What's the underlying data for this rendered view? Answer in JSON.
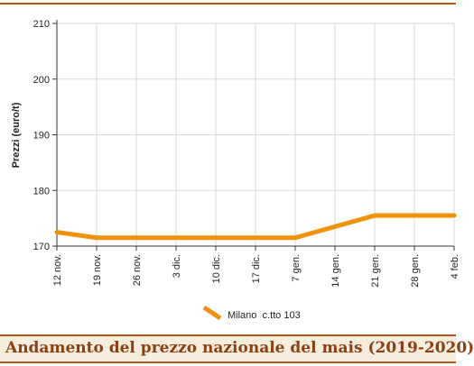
{
  "caption": "Andamento del prezzo nazionale del mais (2019-2020)",
  "chart_data": {
    "type": "line",
    "title": "",
    "xlabel": "",
    "ylabel": "Prezzi (euro/t)",
    "categories": [
      "12 nov.",
      "19 nov.",
      "26 nov.",
      "3 dic.",
      "10 dic.",
      "17 dic.",
      "7 gen.",
      "14 gen.",
      "21 gen.",
      "28 gen.",
      "4 feb."
    ],
    "ylim": [
      170,
      210
    ],
    "yticks": [
      170,
      180,
      190,
      200,
      210
    ],
    "grid": true,
    "legend_position": "bottom",
    "series": [
      {
        "name": "Milano  c.tto 103",
        "color": "#ef9209",
        "values": [
          172.5,
          171.5,
          171.5,
          171.5,
          171.5,
          171.5,
          171.5,
          173.5,
          175.5,
          175.5,
          175.5
        ]
      }
    ]
  }
}
